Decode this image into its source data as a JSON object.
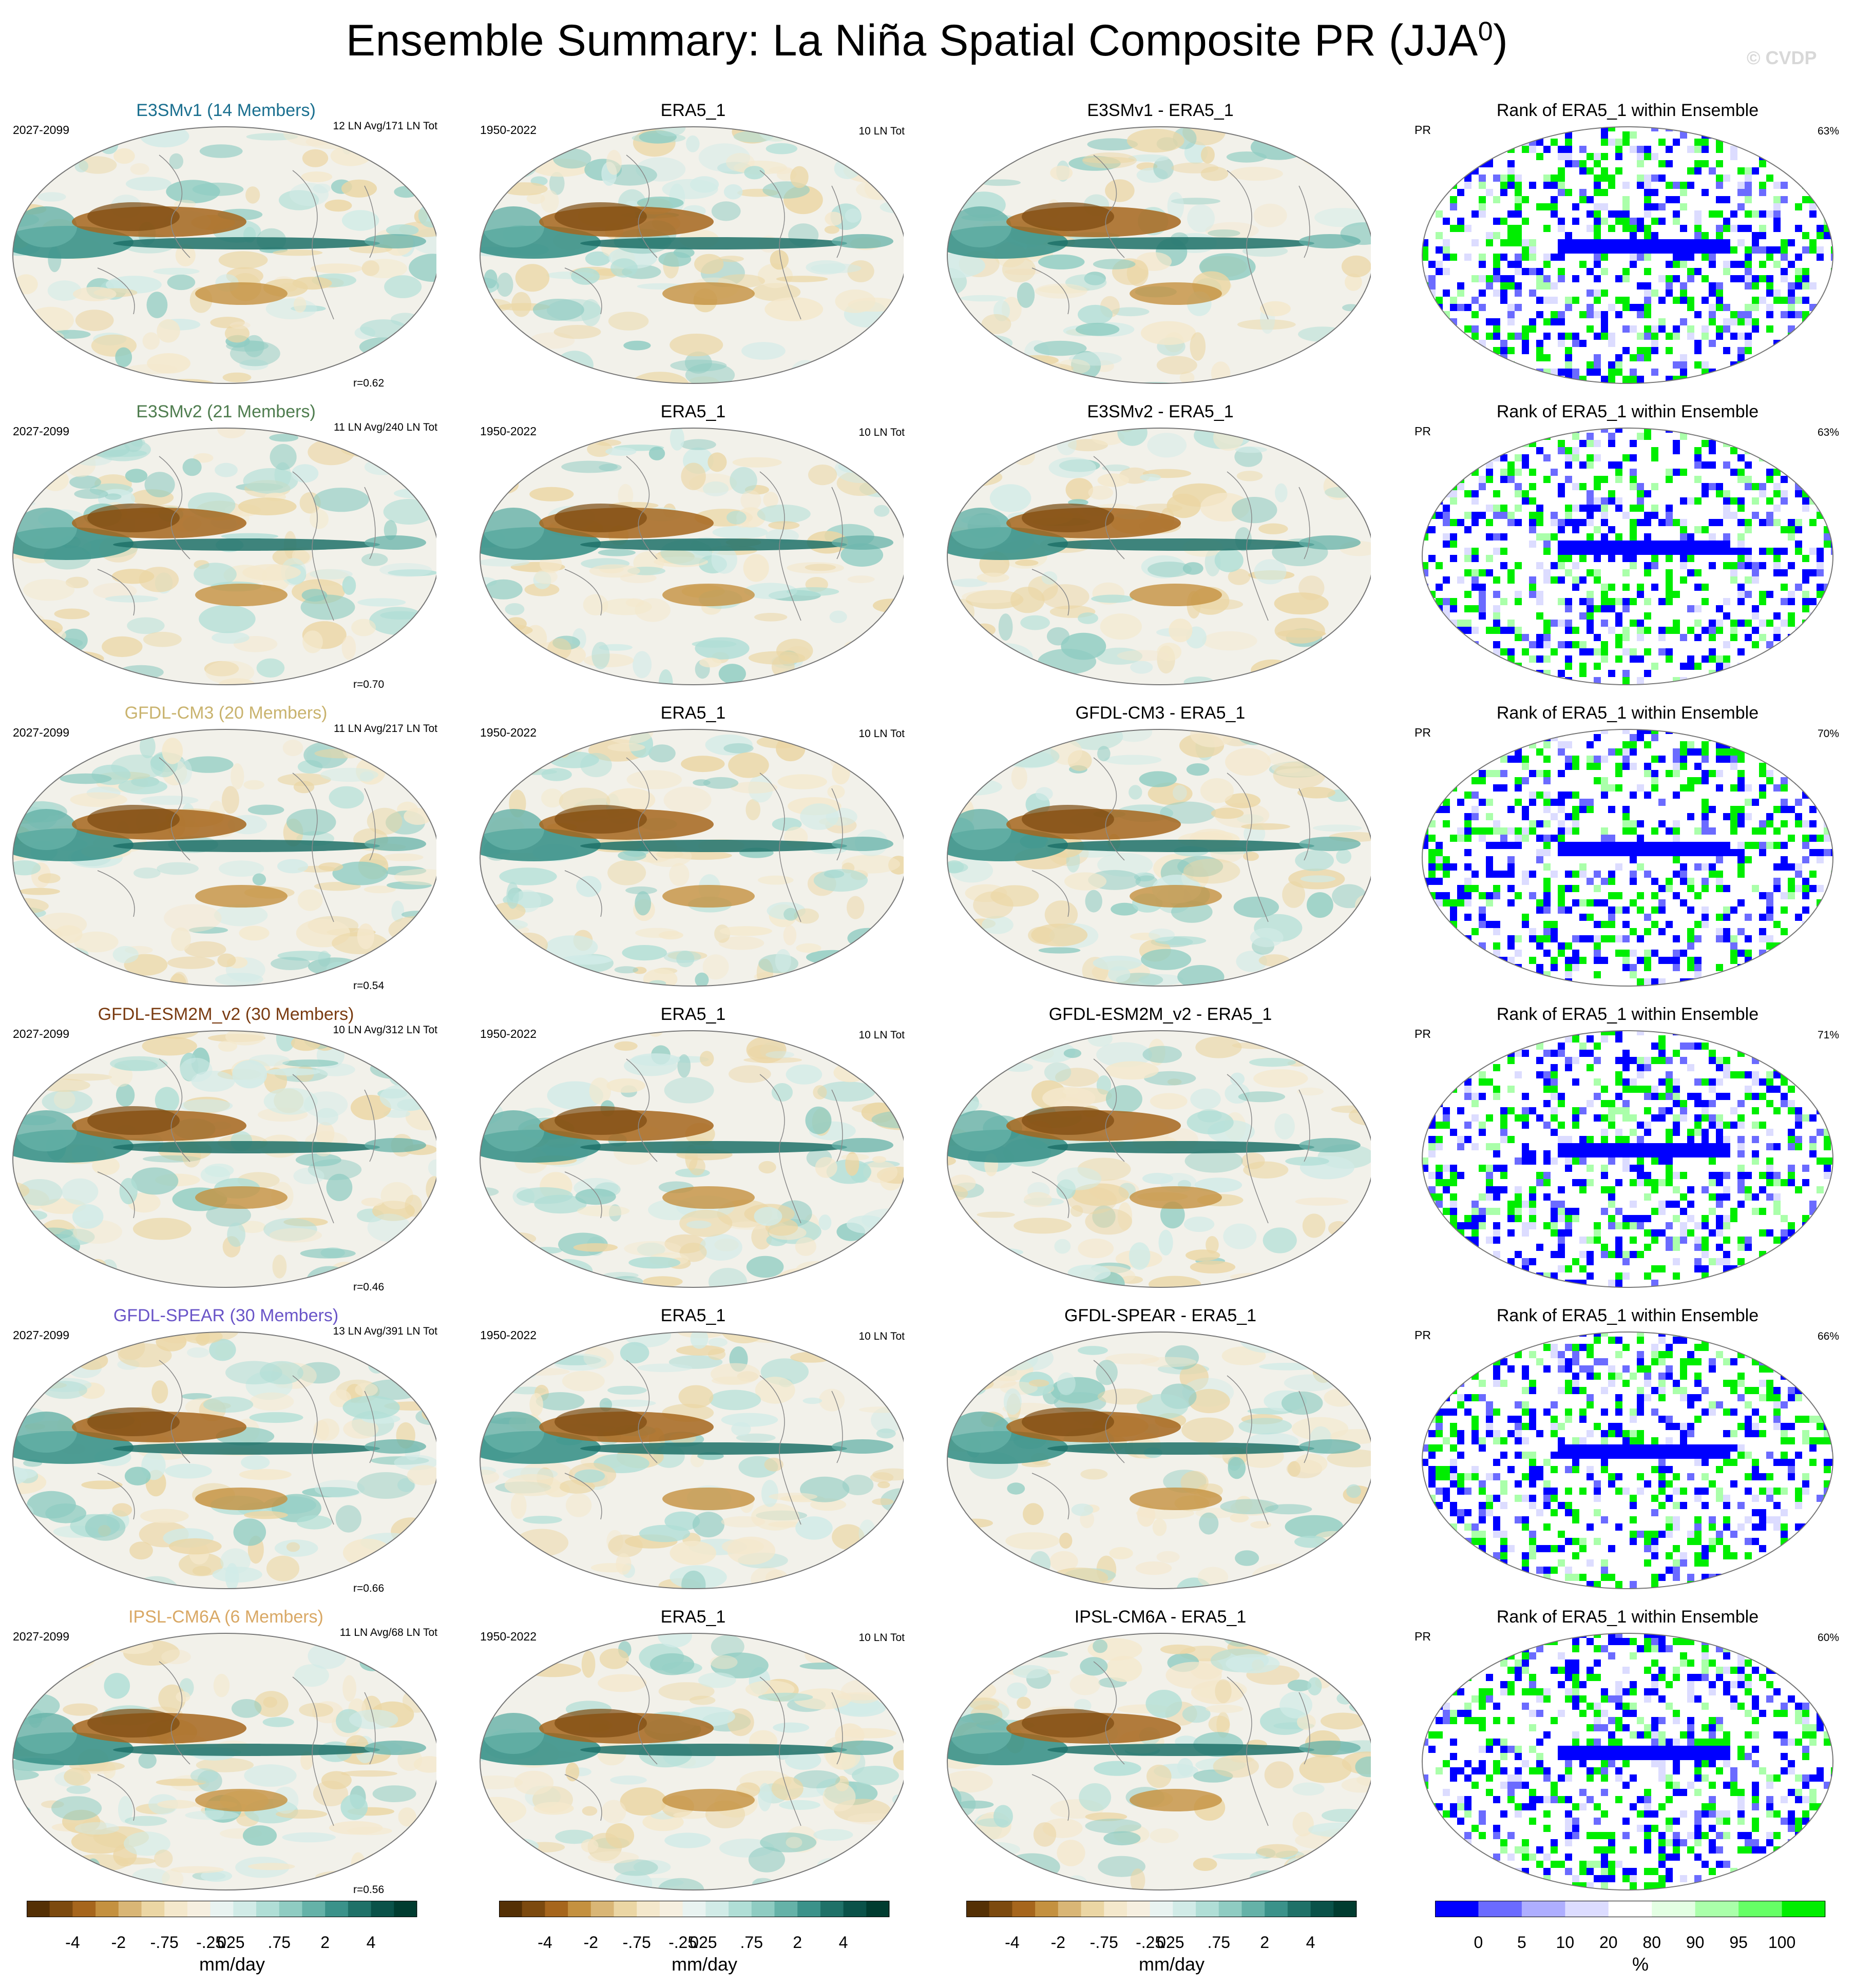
{
  "title": "Ensemble Summary: La Niña Spatial Composite PR (JJA",
  "title_sup": "0",
  "title_close": ")",
  "watermark": "© CVDP",
  "colors": {
    "model_diverging": [
      "#543005",
      "#7c4a0f",
      "#a6661d",
      "#c49140",
      "#d9b676",
      "#ebd6a4",
      "#f4e8cc",
      "#f6efe0",
      "#e9f3f1",
      "#d1ebe7",
      "#b0ded6",
      "#8fccc2",
      "#65b2a8",
      "#3b928a",
      "#1f7168",
      "#0a5249",
      "#003c30"
    ],
    "rank": [
      "#0000ff",
      "#6b6bff",
      "#aeaeff",
      "#dcdcff",
      "#ffffff",
      "#e3ffe3",
      "#aaffaa",
      "#66ff66",
      "#00ee00"
    ],
    "title_e3smv1": "#1a6f8f",
    "title_e3smv2": "#4f7d4f",
    "title_gfdl_cm3": "#c9b36e",
    "title_gfdl_esm2m": "#7a3c12",
    "title_gfdl_spear": "#6a55c8",
    "title_ipsl": "#d9a865"
  },
  "rows": [
    {
      "model_title": "E3SMv1 (14 Members)",
      "model_title_color": "#1a6f8f",
      "model_years": "2027-2099",
      "model_counts": "12 LN Avg/171 LN Tot",
      "r": "r=0.62",
      "obs_title": "ERA5_1",
      "obs_years": "1950-2022",
      "obs_counts": "10 LN Tot",
      "diff_title": "E3SMv1 - ERA5_1",
      "rank_title": "Rank of ERA5_1 within Ensemble",
      "rank_var": "PR",
      "rank_pct": "63%"
    },
    {
      "model_title": "E3SMv2 (21 Members)",
      "model_title_color": "#4f7d4f",
      "model_years": "2027-2099",
      "model_counts": "11 LN Avg/240 LN Tot",
      "r": "r=0.70",
      "obs_title": "ERA5_1",
      "obs_years": "1950-2022",
      "obs_counts": "10 LN Tot",
      "diff_title": "E3SMv2 - ERA5_1",
      "rank_title": "Rank of ERA5_1 within Ensemble",
      "rank_var": "PR",
      "rank_pct": "63%"
    },
    {
      "model_title": "GFDL-CM3 (20 Members)",
      "model_title_color": "#c9b36e",
      "model_years": "2027-2099",
      "model_counts": "11 LN Avg/217 LN Tot",
      "r": "r=0.54",
      "obs_title": "ERA5_1",
      "obs_years": "1950-2022",
      "obs_counts": "10 LN Tot",
      "diff_title": "GFDL-CM3 - ERA5_1",
      "rank_title": "Rank of ERA5_1 within Ensemble",
      "rank_var": "PR",
      "rank_pct": "70%"
    },
    {
      "model_title": "GFDL-ESM2M_v2 (30 Members)",
      "model_title_color": "#7a3c12",
      "model_years": "2027-2099",
      "model_counts": "10 LN Avg/312 LN Tot",
      "r": "r=0.46",
      "obs_title": "ERA5_1",
      "obs_years": "1950-2022",
      "obs_counts": "10 LN Tot",
      "diff_title": "GFDL-ESM2M_v2 - ERA5_1",
      "rank_title": "Rank of ERA5_1 within Ensemble",
      "rank_var": "PR",
      "rank_pct": "71%"
    },
    {
      "model_title": "GFDL-SPEAR (30 Members)",
      "model_title_color": "#6a55c8",
      "model_years": "2027-2099",
      "model_counts": "13 LN Avg/391 LN Tot",
      "r": "r=0.66",
      "obs_title": "ERA5_1",
      "obs_years": "1950-2022",
      "obs_counts": "10 LN Tot",
      "diff_title": "GFDL-SPEAR - ERA5_1",
      "rank_title": "Rank of ERA5_1 within Ensemble",
      "rank_var": "PR",
      "rank_pct": "66%"
    },
    {
      "model_title": "IPSL-CM6A (6 Members)",
      "model_title_color": "#d9a865",
      "model_years": "2027-2099",
      "model_counts": "11 LN Avg/68 LN Tot",
      "r": "r=0.56",
      "obs_title": "ERA5_1",
      "obs_years": "1950-2022",
      "obs_counts": "10 LN Tot",
      "diff_title": "IPSL-CM6A - ERA5_1",
      "rank_title": "Rank of ERA5_1 within Ensemble",
      "rank_var": "PR",
      "rank_pct": "60%"
    }
  ],
  "colorbars": {
    "diverging_ticks": [
      "-4",
      "-2",
      "-.75",
      "-.25",
      "0",
      ".25",
      ".75",
      "2",
      "4"
    ],
    "diverging_unit": "mm/day",
    "rank_ticks": [
      "0",
      "5",
      "10",
      "20",
      "80",
      "90",
      "95",
      "100"
    ],
    "rank_unit": "%"
  }
}
